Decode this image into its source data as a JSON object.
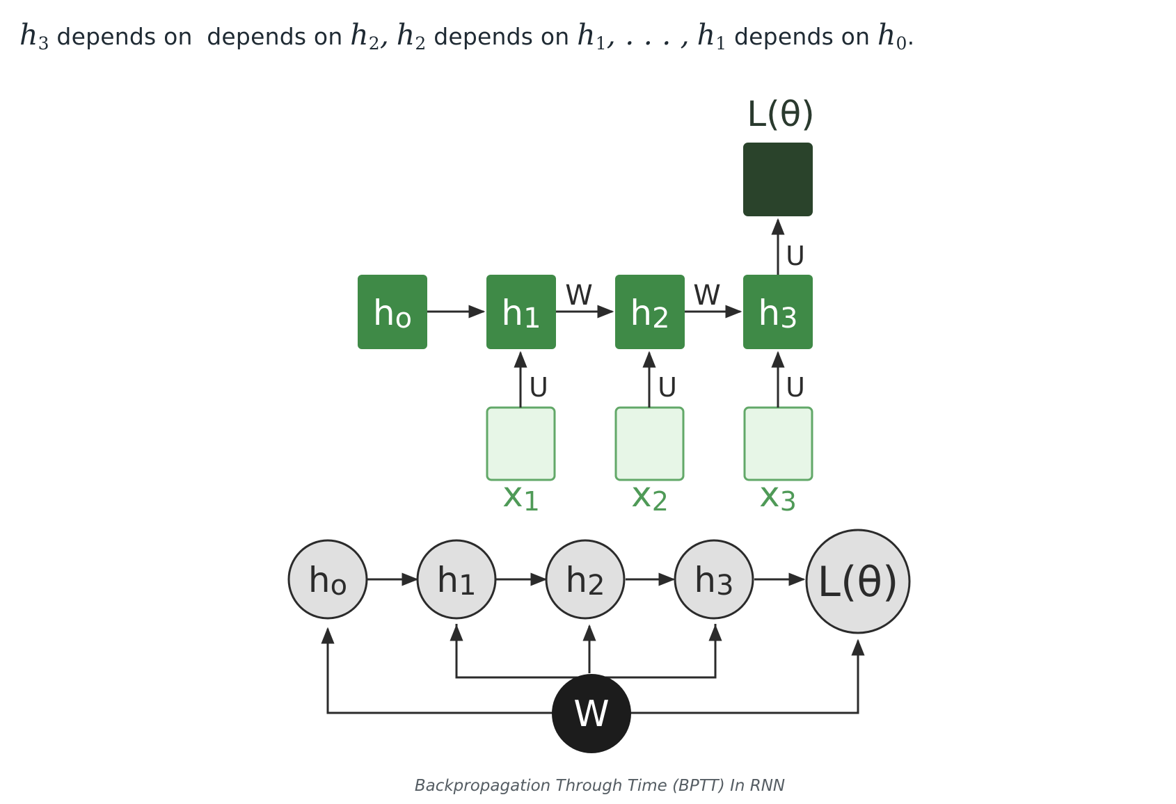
{
  "intro": {
    "h3": "h",
    "h3_sub": "3",
    "text1": "depends on",
    "text2": "depends on",
    "h2a": "h",
    "h2a_sub": "2",
    "comma1": ",",
    "h2b": "h",
    "h2b_sub": "2",
    "text3": "depends on",
    "h1a": "h",
    "h1a_sub": "1",
    "ellipsis": ", . . . ,",
    "h1b": "h",
    "h1b_sub": "1",
    "text4": "depends on",
    "h0": "h",
    "h0_sub": "0",
    "period": "."
  },
  "unrolled": {
    "loss_label": "L(θ)",
    "hidden": [
      {
        "main": "h",
        "sub": "o"
      },
      {
        "main": "h",
        "sub": "1"
      },
      {
        "main": "h",
        "sub": "2"
      },
      {
        "main": "h",
        "sub": "3"
      }
    ],
    "inputs": [
      {
        "main": "x",
        "sub": "1"
      },
      {
        "main": "x",
        "sub": "2"
      },
      {
        "main": "x",
        "sub": "3"
      }
    ],
    "w_label": "W",
    "u_label": "U"
  },
  "graph": {
    "nodes": [
      {
        "main": "h",
        "sub": "o"
      },
      {
        "main": "h",
        "sub": "1"
      },
      {
        "main": "h",
        "sub": "2"
      },
      {
        "main": "h",
        "sub": "3"
      }
    ],
    "loss": "L(θ)",
    "shared": "W"
  },
  "caption": "Backpropagation Through Time (BPTT) In RNN",
  "colors": {
    "hidden_fill": "#3f8a47",
    "loss_fill": "#2a432b",
    "input_fill": "#e7f6e7",
    "input_stroke": "#62a868",
    "node_fill": "#e0e0e0",
    "shared_fill": "#1c1c1c",
    "line": "#2b2b2b",
    "text": "#1f2a33",
    "caption": "#555d63"
  }
}
